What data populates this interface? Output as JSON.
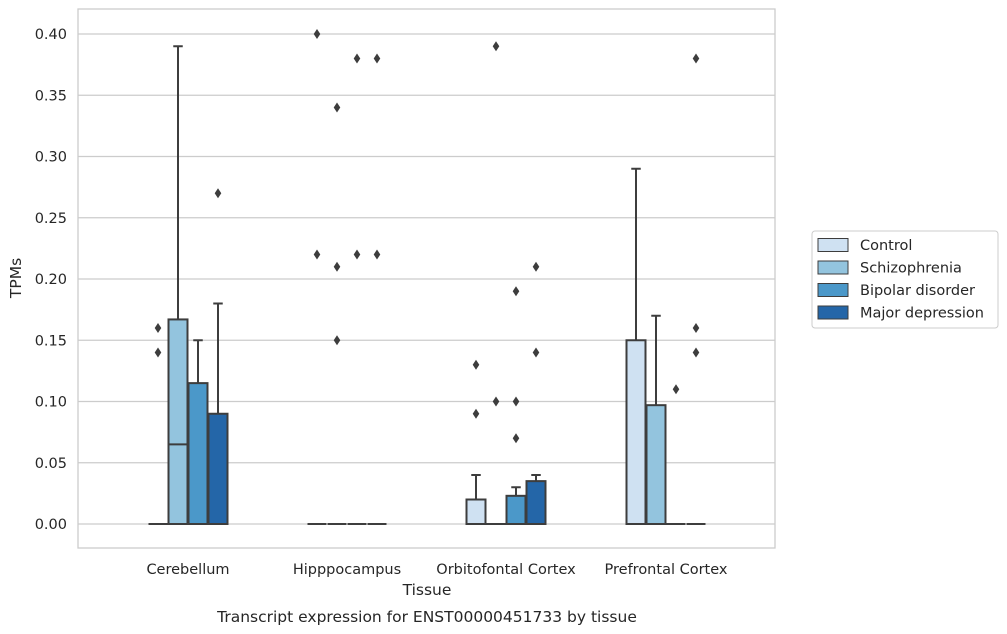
{
  "chart_data": {
    "type": "box",
    "title": "Transcript expression for ENST00000451733 by tissue",
    "xlabel": "Tissue",
    "ylabel": "TPMs",
    "ylim": [
      -0.02,
      0.42
    ],
    "yticks": [
      "0.00",
      "0.05",
      "0.10",
      "0.15",
      "0.20",
      "0.25",
      "0.30",
      "0.35",
      "0.40"
    ],
    "grid": "horizontal",
    "legend_position": "right",
    "categories": [
      "Cerebellum",
      "Hipppocampus",
      "Orbitofontal Cortex",
      "Prefrontal Cortex"
    ],
    "series": [
      {
        "name": "Control",
        "color": "#cfe1f2",
        "boxes": [
          {
            "q1": 0,
            "median": 0,
            "q3": 0,
            "whisker_low": 0,
            "whisker_high": 0,
            "outliers": [
              0.14,
              0.16
            ]
          },
          {
            "q1": 0,
            "median": 0,
            "q3": 0,
            "whisker_low": 0,
            "whisker_high": 0,
            "outliers": [
              0.22,
              0.4
            ]
          },
          {
            "q1": 0,
            "median": 0,
            "q3": 0.02,
            "whisker_low": 0,
            "whisker_high": 0.04,
            "outliers": [
              0.09,
              0.13
            ]
          },
          {
            "q1": 0,
            "median": 0,
            "q3": 0.15,
            "whisker_low": 0,
            "whisker_high": 0.29,
            "outliers": []
          }
        ]
      },
      {
        "name": "Schizophrenia",
        "color": "#93c4de",
        "boxes": [
          {
            "q1": 0,
            "median": 0.065,
            "q3": 0.167,
            "whisker_low": 0,
            "whisker_high": 0.39,
            "outliers": []
          },
          {
            "q1": 0,
            "median": 0,
            "q3": 0,
            "whisker_low": 0,
            "whisker_high": 0,
            "outliers": [
              0.15,
              0.21,
              0.34
            ]
          },
          {
            "q1": 0,
            "median": 0,
            "q3": 0,
            "whisker_low": 0,
            "whisker_high": 0,
            "outliers": [
              0.1,
              0.39
            ]
          },
          {
            "q1": 0,
            "median": 0,
            "q3": 0.097,
            "whisker_low": 0,
            "whisker_high": 0.17,
            "outliers": []
          }
        ]
      },
      {
        "name": "Bipolar disorder",
        "color": "#4b98c9",
        "boxes": [
          {
            "q1": 0,
            "median": 0,
            "q3": 0.115,
            "whisker_low": 0,
            "whisker_high": 0.15,
            "outliers": []
          },
          {
            "q1": 0,
            "median": 0,
            "q3": 0,
            "whisker_low": 0,
            "whisker_high": 0,
            "outliers": [
              0.22,
              0.38
            ]
          },
          {
            "q1": 0,
            "median": 0,
            "q3": 0.023,
            "whisker_low": 0,
            "whisker_high": 0.03,
            "outliers": [
              0.07,
              0.1,
              0.19
            ]
          },
          {
            "q1": 0,
            "median": 0,
            "q3": 0,
            "whisker_low": 0,
            "whisker_high": 0,
            "outliers": [
              0.11
            ]
          }
        ]
      },
      {
        "name": "Major depression",
        "color": "#2466a8",
        "boxes": [
          {
            "q1": 0,
            "median": 0,
            "q3": 0.09,
            "whisker_low": 0,
            "whisker_high": 0.18,
            "outliers": [
              0.27
            ]
          },
          {
            "q1": 0,
            "median": 0,
            "q3": 0,
            "whisker_low": 0,
            "whisker_high": 0,
            "outliers": [
              0.22,
              0.38
            ]
          },
          {
            "q1": 0,
            "median": 0,
            "q3": 0.035,
            "whisker_low": 0,
            "whisker_high": 0.04,
            "outliers": [
              0.14,
              0.21
            ]
          },
          {
            "q1": 0,
            "median": 0,
            "q3": 0,
            "whisker_low": 0,
            "whisker_high": 0,
            "outliers": [
              0.14,
              0.16,
              0.38
            ]
          }
        ]
      }
    ]
  }
}
